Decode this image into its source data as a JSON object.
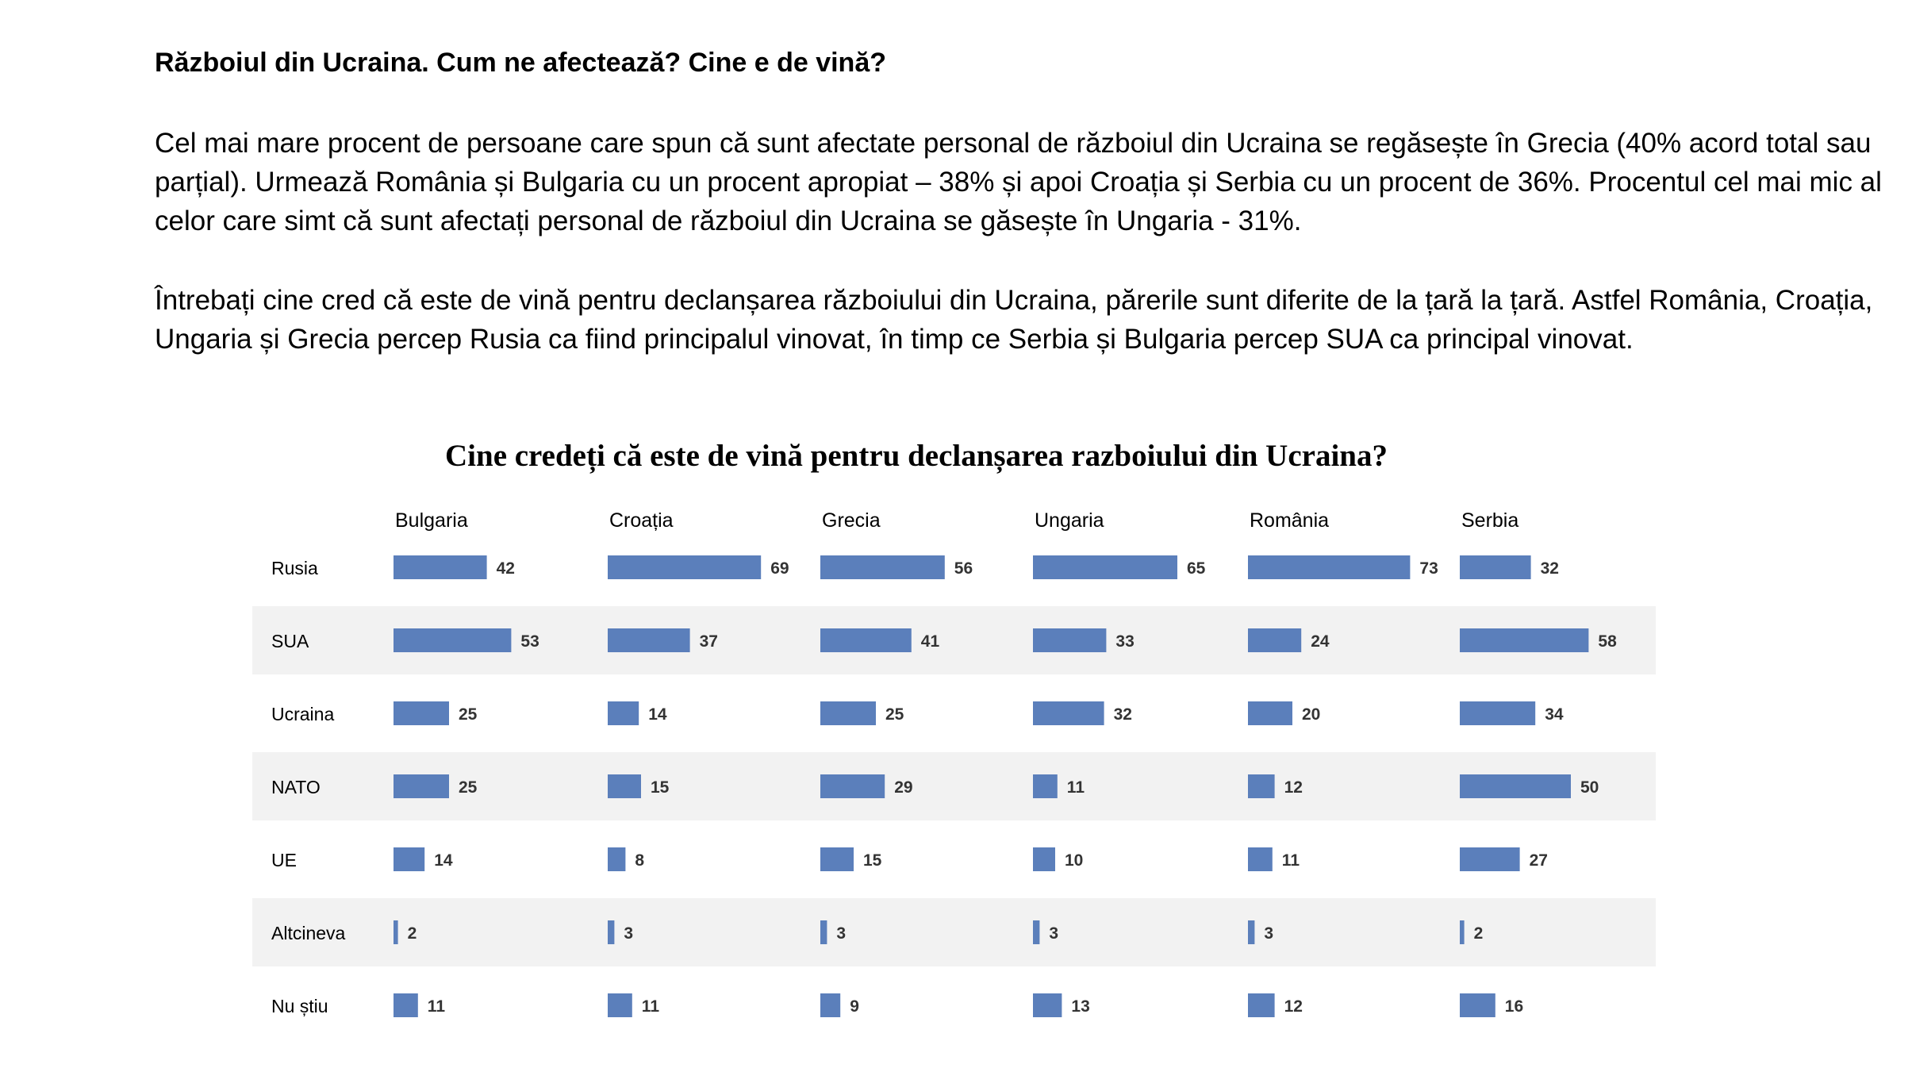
{
  "document": {
    "heading": "Războiul din Ucraina. Cum ne afectează? Cine e de vină?",
    "paragraph1": "Cel mai mare procent de persoane care spun că sunt afectate personal de războiul din Ucraina se regăsește în Grecia  (40%  acord total sau parțial). Urmează România și Bulgaria cu un procent apropiat – 38% și apoi Croația și Serbia cu un procent de 36%. Procentul cel mai mic al celor care simt că sunt afectați personal de războiul din Ucraina se găsește în Ungaria - 31%.",
    "paragraph2": "Întrebați cine cred că este de vină pentru declanșarea războiului din Ucraina, părerile sunt diferite de la țară la țară. Astfel România, Croația, Ungaria și Grecia percep Rusia ca fiind principalul vinovat, în timp ce Serbia și Bulgaria  percep SUA ca principal vinovat."
  },
  "chart_data": {
    "type": "bar",
    "orientation": "horizontal",
    "layout": "small-multiples",
    "title": "Cine credeți că este de vină pentru declanșarea razboiului din Ucraina?",
    "categories": [
      "Rusia",
      "SUA",
      "Ucraina",
      "NATO",
      "UE",
      "Altcineva",
      "Nu  știu"
    ],
    "series": [
      {
        "name": "Bulgaria",
        "values": [
          42,
          53,
          25,
          25,
          14,
          2,
          11
        ]
      },
      {
        "name": "Croația",
        "values": [
          69,
          37,
          14,
          15,
          8,
          3,
          11
        ]
      },
      {
        "name": "Grecia",
        "values": [
          56,
          41,
          25,
          29,
          15,
          3,
          9
        ]
      },
      {
        "name": "Ungaria",
        "values": [
          65,
          33,
          32,
          11,
          10,
          3,
          13
        ]
      },
      {
        "name": "România",
        "values": [
          73,
          24,
          20,
          12,
          11,
          3,
          12
        ]
      },
      {
        "name": "Serbia",
        "values": [
          32,
          58,
          34,
          50,
          27,
          2,
          16
        ]
      }
    ],
    "value_labels": true,
    "grid": false,
    "legend": "none",
    "colors": {
      "bar": "#5b7fbb",
      "band": "#f2f2f2",
      "value_text": "#333333"
    }
  }
}
